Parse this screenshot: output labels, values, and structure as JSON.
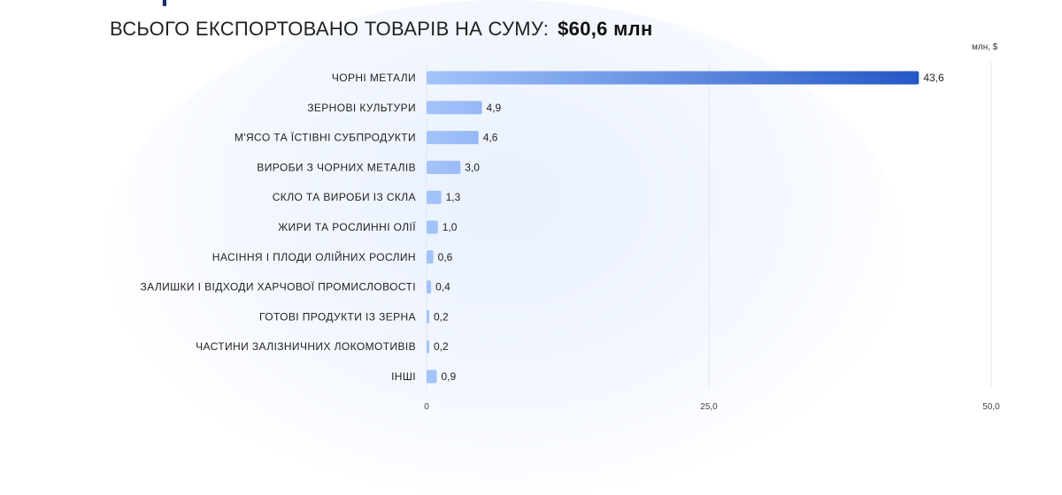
{
  "header": {
    "title_partial": "РЕЦІЯ",
    "subtitle": "ВСЬОГО ЕКСПОРТОВАНО ТОВАРІВ НА СУМУ:",
    "total": "$60,6 млн"
  },
  "logo_icon": "open-book-icon",
  "colors": {
    "bar_light": "#a3c4fb",
    "bar_dark": "#1a4fc2",
    "grid": "#e3e8f0"
  },
  "chart_data": {
    "type": "bar",
    "orientation": "horizontal",
    "unit_label": "млн, $",
    "categories": [
      "ЧОРНІ МЕТАЛИ",
      "ЗЕРНОВІ КУЛЬТУРИ",
      "М'ЯСО ТА ЇСТІВНІ СУБПРОДУКТИ",
      "ВИРОБИ З ЧОРНИХ МЕТАЛІВ",
      "СКЛО ТА ВИРОБИ ІЗ СКЛА",
      "ЖИРИ ТА РОСЛИННІ ОЛІЇ",
      "НАСІННЯ І ПЛОДИ ОЛІЙНИХ РОСЛИН",
      "ЗАЛИШКИ І ВІДХОДИ ХАРЧОВОЇ ПРОМИСЛОВОСТІ",
      "ГОТОВІ ПРОДУКТИ ІЗ ЗЕРНА",
      "ЧАСТИНИ ЗАЛІЗНИЧНИХ ЛОКОМОТИВІВ",
      "ІНШІ"
    ],
    "values": [
      43.6,
      4.9,
      4.6,
      3.0,
      1.3,
      1.0,
      0.6,
      0.4,
      0.2,
      0.2,
      0.9
    ],
    "value_labels": [
      "43,6",
      "4,9",
      "4,6",
      "3,0",
      "1,3",
      "1,0",
      "0,6",
      "0,4",
      "0,2",
      "0,2",
      "0,9"
    ],
    "x_ticks": [
      0,
      25,
      50
    ],
    "x_tick_labels": [
      "0",
      "25,0",
      "50,0"
    ],
    "xlim": [
      0,
      50
    ],
    "grid": true,
    "legend": "none"
  }
}
